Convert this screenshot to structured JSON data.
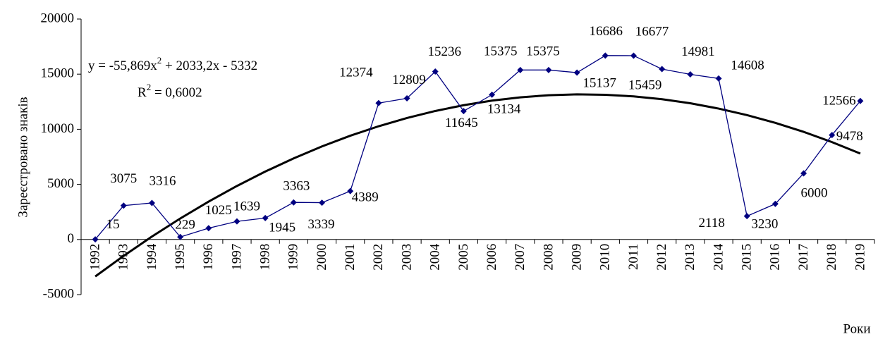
{
  "chart_data": {
    "type": "line",
    "y_label": "Зареєстровано знаків",
    "x_label": "Роки",
    "categories": [
      "1992",
      "1993",
      "1994",
      "1995",
      "1996",
      "1997",
      "1998",
      "1999",
      "2000",
      "2001",
      "2002",
      "2003",
      "2004",
      "2005",
      "2006",
      "2007",
      "2008",
      "2009",
      "2010",
      "2011",
      "2012",
      "2013",
      "2014",
      "2015",
      "2016",
      "2017",
      "2018",
      "2019"
    ],
    "series": [
      {
        "color": "#000080",
        "values": [
          15,
          3075,
          3316,
          229,
          1025,
          1639,
          1945,
          3363,
          3339,
          4389,
          12374,
          12809,
          15236,
          11645,
          13134,
          15375,
          15375,
          15137,
          16686,
          16677,
          15459,
          14981,
          14608,
          2118,
          3230,
          6000,
          9478,
          12566
        ]
      }
    ],
    "trendline": {
      "color": "#000000",
      "values": [
        -3355,
        -1489,
        265,
        1907,
        3437,
        4856,
        6163,
        7358,
        8441,
        9413,
        10273,
        11021,
        11658,
        12183,
        12596,
        12897,
        13086,
        13164,
        13130,
        12984,
        12727,
        12358,
        11877,
        11284,
        10581,
        9764,
        8836,
        7796
      ],
      "equation": [
        "y = -55,869x",
        "2",
        " + 2033,2x - 5332"
      ],
      "r_squared": [
        "R",
        "2",
        " = 0,6002"
      ]
    },
    "ylim": [
      -5000,
      20000
    ],
    "yticks": [
      -5000,
      0,
      5000,
      10000,
      15000,
      20000
    ]
  }
}
